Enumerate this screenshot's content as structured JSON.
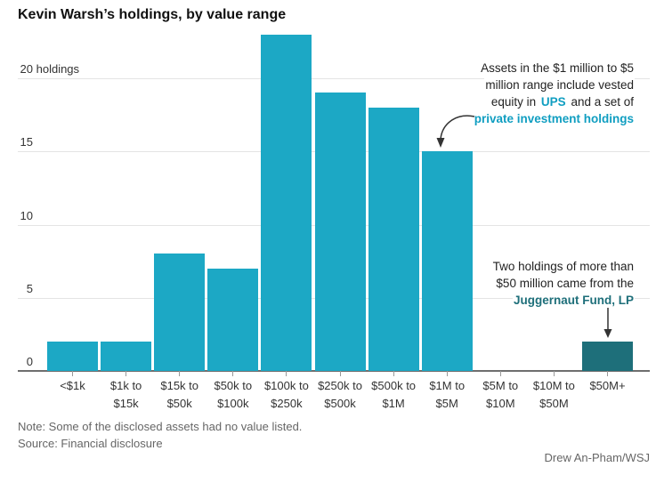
{
  "title": "Kevin Warsh’s holdings, by value range",
  "chart_data": {
    "type": "bar",
    "title": "Kevin Warsh’s holdings, by value range",
    "categories": [
      "<$1k",
      "$1k to $15k",
      "$15k to $50k",
      "$50k to $100k",
      "$100k to $250k",
      "$250k to $500k",
      "$500k to $1M",
      "$1M to $5M",
      "$5M to $10M",
      "$10M to $50M",
      "$50M+"
    ],
    "category_label_lines": [
      [
        "<$1k"
      ],
      [
        "$1k to",
        "$15k"
      ],
      [
        "$15k to",
        "$50k"
      ],
      [
        "$50k to",
        "$100k"
      ],
      [
        "$100k to",
        "$250k"
      ],
      [
        "$250k to",
        "$500k"
      ],
      [
        "$500k to",
        "$1M"
      ],
      [
        "$1M to",
        "$5M"
      ],
      [
        "$5M to",
        "$10M"
      ],
      [
        "$10M to",
        "$50M"
      ],
      [
        "$50M+"
      ]
    ],
    "values": [
      2,
      2,
      8,
      7,
      23,
      19,
      18,
      15,
      0,
      0,
      2
    ],
    "highlight_index": 10,
    "xlabel": "",
    "ylabel": "holdings",
    "ylim": [
      0,
      23
    ],
    "grid": true,
    "legend": "none",
    "yticks": [
      {
        "v": 0,
        "num": "0",
        "suffix": ""
      },
      {
        "v": 5,
        "num": "5",
        "suffix": ""
      },
      {
        "v": 10,
        "num": "10",
        "suffix": ""
      },
      {
        "v": 15,
        "num": "15",
        "suffix": ""
      },
      {
        "v": 20,
        "num": "20",
        "suffix": " holdings"
      }
    ]
  },
  "annotations": {
    "mid_range": {
      "lines": [
        [
          {
            "t": "Assets in the $1 million to $5"
          }
        ],
        [
          {
            "t": "million range include vested"
          }
        ],
        [
          {
            "t": "equity in "
          },
          {
            "t": "UPS",
            "s": "teal-bold"
          },
          {
            "t": " and a set of"
          }
        ],
        [
          {
            "t": "private investment holdings",
            "s": "teal-bold"
          }
        ]
      ]
    },
    "top_range": {
      "lines": [
        [
          {
            "t": "Two holdings of more than"
          }
        ],
        [
          {
            "t": "$50 million came from the"
          }
        ],
        [
          {
            "t": "Juggernaut Fund, LP",
            "s": "darkteal-bold"
          }
        ]
      ]
    }
  },
  "footer": {
    "note": "Note: Some of the disclosed assets had no value listed.",
    "source": "Source: Financial disclosure",
    "credit": "Drew An-Pham/WSJ"
  },
  "colors": {
    "bar": "#1CA8C5",
    "bar_highlight": "#1E6F7A",
    "annotation_teal": "#109EC1",
    "annotation_dark_teal": "#1E6F7A",
    "gridline": "#E4E4E4",
    "axis_line": "#6E6E6E",
    "tick": "#999999",
    "text_dark": "#333333",
    "text_gray": "#666666",
    "arrow": "#333333"
  }
}
